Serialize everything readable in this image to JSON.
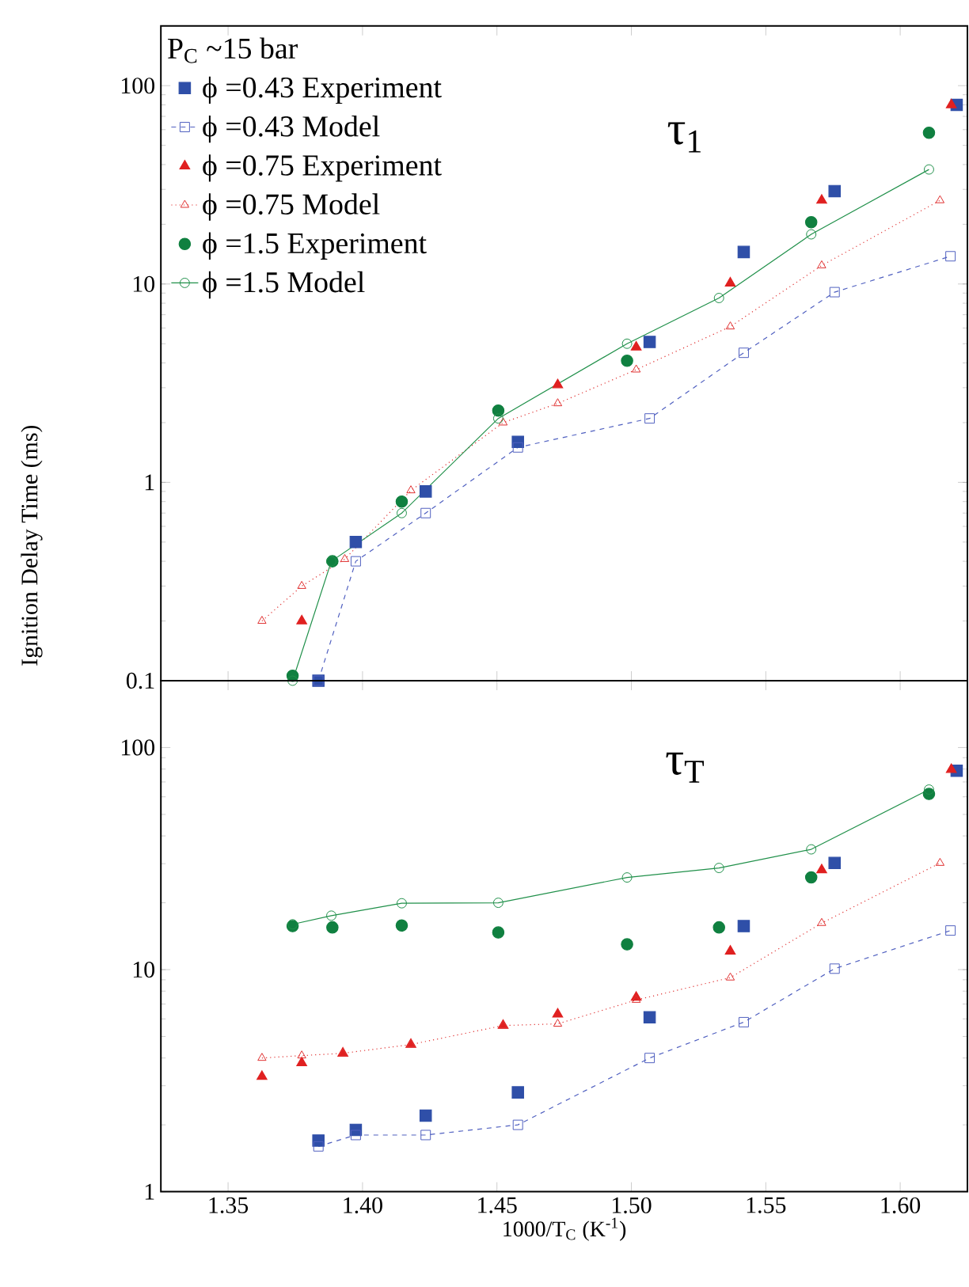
{
  "chart_data": [
    {
      "type": "scatter",
      "legend_title": "P$_{C}$ ~15 bar",
      "ylabel": "Ignition Delay Time (ms)",
      "annotations": [
        "τ$_{1}$"
      ],
      "log": "y",
      "legend": "top left",
      "tick_labels": "y",
      "xlim": [
        1.325,
        1.625
      ],
      "ylim": [
        0.1,
        200
      ],
      "xticks": [
        1.35,
        1.4,
        1.45,
        1.5,
        1.55,
        1.6
      ],
      "yticks": [
        0.1,
        1,
        10,
        100
      ],
      "series": [
        {
          "name": "ϕ =0.43 Experiment",
          "marker": "square",
          "color": "#2f4fa8",
          "x": [
            1.3836,
            1.3975,
            1.4235,
            1.4578,
            1.5068,
            1.5418,
            1.5756,
            1.621
          ],
          "values": [
            0.1,
            0.5,
            0.9,
            1.6,
            5.1,
            14.5,
            29.4,
            80
          ]
        },
        {
          "name": "ϕ =0.43 Model",
          "type": "line",
          "marker": "square",
          "line_style": "dashed",
          "color": "#5060c0",
          "x": [
            1.3836,
            1.3975,
            1.4235,
            1.4578,
            1.5068,
            1.5418,
            1.5756,
            1.6187
          ],
          "values": [
            0.1,
            0.4,
            0.7,
            1.5,
            2.1,
            4.5,
            9.1,
            13.8
          ]
        },
        {
          "name": "ϕ =0.75 Experiment",
          "marker": "triangle",
          "color": "#e02020",
          "x": [
            1.3774,
            1.4726,
            1.5018,
            1.5368,
            1.5708,
            1.619
          ],
          "values": [
            0.2,
            3.1,
            4.8,
            10.1,
            26.4,
            80
          ]
        },
        {
          "name": "ϕ =0.75 Model",
          "type": "line",
          "marker": "triangle",
          "line_style": "dotted",
          "color": "#e03030",
          "x": [
            1.3626,
            1.3774,
            1.3934,
            1.418,
            1.4523,
            1.4726,
            1.5018,
            1.5368,
            1.5708,
            1.6148
          ],
          "values": [
            0.2,
            0.3,
            0.41,
            0.91,
            2.0,
            2.5,
            3.7,
            6.1,
            12.4,
            26.4
          ]
        },
        {
          "name": "ϕ =1.5 Experiment",
          "marker": "circle",
          "color": "#108040",
          "x": [
            1.374,
            1.3888,
            1.4146,
            1.4505,
            1.4984,
            1.5669,
            1.6107
          ],
          "values": [
            0.106,
            0.4,
            0.8,
            2.3,
            4.1,
            20.5,
            57.9
          ]
        },
        {
          "name": "ϕ =1.5 Model",
          "type": "line",
          "marker": "circle",
          "line_style": "solid",
          "color": "#20904a",
          "x": [
            1.374,
            1.3884,
            1.4146,
            1.4505,
            1.4984,
            1.5326,
            1.5669,
            1.6107
          ],
          "values": [
            0.1,
            0.4,
            0.7,
            2.1,
            5.0,
            8.5,
            17.8,
            37.8
          ]
        }
      ]
    },
    {
      "type": "scatter",
      "xlabel": "1000/T$_{C}$ (K$^{-1}$)",
      "annotations": [
        "τ$_{T}$"
      ],
      "log": "y",
      "xlim": [
        1.325,
        1.625
      ],
      "ylim": [
        1,
        200
      ],
      "xticks": [
        1.35,
        {
          "value": 1.4,
          "label": "1.40"
        },
        1.45,
        {
          "value": 1.5,
          "label": "1.50"
        },
        1.55,
        {
          "value": 1.6,
          "label": "1.60"
        }
      ],
      "yticks": [
        1,
        10,
        100
      ],
      "series": [
        {
          "marker": "square",
          "color": "#2f4fa8",
          "x": [
            1.3836,
            1.3975,
            1.4235,
            1.4578,
            1.5068,
            1.5418,
            1.5756,
            1.621
          ],
          "values": [
            1.7,
            1.9,
            2.2,
            2.8,
            6.1,
            15.7,
            30.2,
            78.6
          ]
        },
        {
          "type": "line",
          "marker": "square",
          "line_style": "dashed",
          "color": "#5060c0",
          "x": [
            1.3836,
            1.3975,
            1.4235,
            1.4578,
            1.5068,
            1.5418,
            1.5756,
            1.6187
          ],
          "values": [
            1.6,
            1.8,
            1.8,
            2.0,
            4.0,
            5.8,
            10.1,
            15.0
          ]
        },
        {
          "marker": "triangle",
          "color": "#e02020",
          "x": [
            1.3626,
            1.3774,
            1.3927,
            1.418,
            1.4523,
            1.4726,
            1.5018,
            1.5368,
            1.5708,
            1.619
          ],
          "values": [
            3.3,
            3.8,
            4.2,
            4.6,
            5.6,
            6.3,
            7.5,
            12.1,
            28.1,
            79.6
          ]
        },
        {
          "type": "line",
          "marker": "triangle",
          "line_style": "dotted",
          "color": "#e03030",
          "x": [
            1.3626,
            1.3774,
            1.3927,
            1.418,
            1.4523,
            1.4726,
            1.5018,
            1.5368,
            1.5708,
            1.6148
          ],
          "values": [
            4.0,
            4.1,
            4.2,
            4.6,
            5.6,
            5.7,
            7.3,
            9.2,
            16.2,
            30.2
          ]
        },
        {
          "marker": "circle",
          "color": "#108040",
          "x": [
            1.374,
            1.3888,
            1.4146,
            1.4505,
            1.4984,
            1.5326,
            1.5669,
            1.6107
          ],
          "values": [
            15.7,
            15.5,
            15.8,
            14.7,
            13.0,
            15.5,
            26.0,
            61.8
          ]
        },
        {
          "type": "line",
          "marker": "circle",
          "line_style": "solid",
          "color": "#20904a",
          "x": [
            1.374,
            1.3884,
            1.4146,
            1.4505,
            1.4984,
            1.5326,
            1.5669,
            1.6107
          ],
          "values": [
            16.0,
            17.5,
            19.9,
            20.0,
            26.0,
            28.7,
            34.8,
            64.7
          ]
        }
      ]
    }
  ]
}
